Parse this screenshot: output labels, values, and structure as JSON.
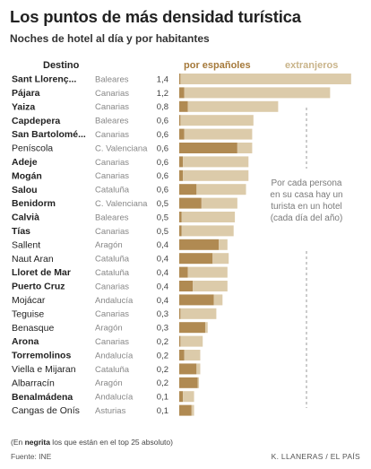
{
  "title": "Los puntos de más densidad turística",
  "subtitle": "Noches de hotel al día y por habitantes",
  "footnote": {
    "open": "(En ",
    "bold": "negrita",
    "rest": " los que están en el top 25 absoluto)"
  },
  "source": "Fuente: INE",
  "credit": "K. LLANERAS  /  EL PAÍS",
  "annotation": [
    "Por cada persona",
    "en su casa hay un",
    "turista en un hotel",
    "(cada día del año)"
  ],
  "colors": {
    "domestic": "#b08a52",
    "foreign": "#dccbaa",
    "dash": "#9a9a9a"
  },
  "chart_data": {
    "type": "bar",
    "orientation": "horizontal",
    "stacked": true,
    "column_header": "Destino",
    "legend": [
      "por españoles",
      "extranjeros"
    ],
    "rows": [
      {
        "name": "Sant Llorenç...",
        "region": "Baleares",
        "value": "1,4",
        "top25": true,
        "domestic": 0.01,
        "foreign": 1.38
      },
      {
        "name": "Pájara",
        "region": "Canarias",
        "value": "1,2",
        "top25": true,
        "domestic": 0.04,
        "foreign": 1.18
      },
      {
        "name": "Yaiza",
        "region": "Canarias",
        "value": "0,8",
        "top25": true,
        "domestic": 0.07,
        "foreign": 0.73
      },
      {
        "name": "Capdepera",
        "region": "Baleares",
        "value": "0,6",
        "top25": true,
        "domestic": 0.01,
        "foreign": 0.59
      },
      {
        "name": "San Bartolomé...",
        "region": "Canarias",
        "value": "0,6",
        "top25": true,
        "domestic": 0.04,
        "foreign": 0.55
      },
      {
        "name": "Peníscola",
        "region": "C. Valenciana",
        "value": "0,6",
        "top25": false,
        "domestic": 0.47,
        "foreign": 0.12
      },
      {
        "name": "Adeje",
        "region": "Canarias",
        "value": "0,6",
        "top25": true,
        "domestic": 0.03,
        "foreign": 0.53
      },
      {
        "name": "Mogán",
        "region": "Canarias",
        "value": "0,6",
        "top25": true,
        "domestic": 0.03,
        "foreign": 0.53
      },
      {
        "name": "Salou",
        "region": "Cataluña",
        "value": "0,6",
        "top25": true,
        "domestic": 0.14,
        "foreign": 0.4
      },
      {
        "name": "Benidorm",
        "region": "C. Valenciana",
        "value": "0,5",
        "top25": true,
        "domestic": 0.18,
        "foreign": 0.29
      },
      {
        "name": "Calvià",
        "region": "Baleares",
        "value": "0,5",
        "top25": true,
        "domestic": 0.02,
        "foreign": 0.43
      },
      {
        "name": "Tías",
        "region": "Canarias",
        "value": "0,5",
        "top25": true,
        "domestic": 0.02,
        "foreign": 0.42
      },
      {
        "name": "Sallent",
        "region": "Aragón",
        "value": "0,4",
        "top25": false,
        "domestic": 0.32,
        "foreign": 0.07
      },
      {
        "name": "Naut Aran",
        "region": "Cataluña",
        "value": "0,4",
        "top25": false,
        "domestic": 0.27,
        "foreign": 0.13
      },
      {
        "name": "Lloret de Mar",
        "region": "Cataluña",
        "value": "0,4",
        "top25": true,
        "domestic": 0.07,
        "foreign": 0.32
      },
      {
        "name": "Puerto Cruz",
        "region": "Canarias",
        "value": "0,4",
        "top25": true,
        "domestic": 0.11,
        "foreign": 0.28
      },
      {
        "name": "Mojácar",
        "region": "Andalucía",
        "value": "0,4",
        "top25": false,
        "domestic": 0.28,
        "foreign": 0.07
      },
      {
        "name": "Teguise",
        "region": "Canarias",
        "value": "0,3",
        "top25": false,
        "domestic": 0.01,
        "foreign": 0.29
      },
      {
        "name": "Benasque",
        "region": "Aragón",
        "value": "0,3",
        "top25": false,
        "domestic": 0.21,
        "foreign": 0.02
      },
      {
        "name": "Arona",
        "region": "Canarias",
        "value": "0,2",
        "top25": true,
        "domestic": 0.01,
        "foreign": 0.18
      },
      {
        "name": "Torremolinos",
        "region": "Andalucía",
        "value": "0,2",
        "top25": true,
        "domestic": 0.04,
        "foreign": 0.13
      },
      {
        "name": "Viella e Mijaran",
        "region": "Cataluña",
        "value": "0,2",
        "top25": false,
        "domestic": 0.14,
        "foreign": 0.03
      },
      {
        "name": "Albarracín",
        "region": "Aragón",
        "value": "0,2",
        "top25": false,
        "domestic": 0.15,
        "foreign": 0.01
      },
      {
        "name": "Benalmádena",
        "region": "Andalucía",
        "value": "0,1",
        "top25": true,
        "domestic": 0.03,
        "foreign": 0.09
      },
      {
        "name": "Cangas de Onís",
        "region": "Asturias",
        "value": "0,1",
        "top25": false,
        "domestic": 0.1,
        "foreign": 0.02
      }
    ]
  }
}
